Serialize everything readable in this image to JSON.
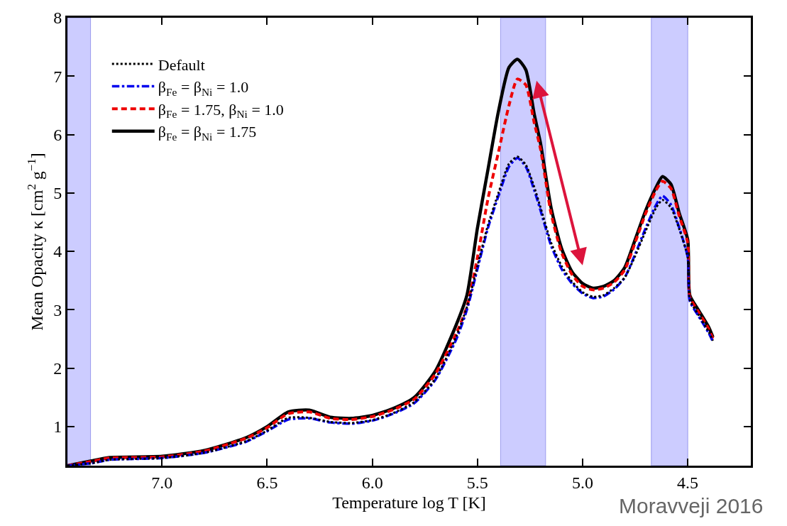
{
  "chart_data": {
    "type": "line",
    "xlabel": "Temperature log T [K]",
    "ylabel": "Mean Opacity κ [cm$^{2}$ g$^{−1}$]",
    "x": [
      7.45,
      7.34,
      7.25,
      7.0,
      6.8,
      6.6,
      6.5,
      6.4,
      6.3,
      6.2,
      6.1,
      6.0,
      5.9,
      5.8,
      5.7,
      5.6,
      5.55,
      5.5,
      5.45,
      5.4,
      5.35,
      5.31,
      5.27,
      5.23,
      5.2,
      5.15,
      5.1,
      5.05,
      5.0,
      4.95,
      4.9,
      4.85,
      4.8,
      4.75,
      4.7,
      4.65,
      4.62,
      4.58,
      4.54,
      4.5,
      4.49,
      4.45,
      4.4,
      4.38
    ],
    "series": [
      {
        "name": "Default",
        "color": "#000000",
        "line_style": "dotted",
        "values": [
          0.33,
          0.37,
          0.43,
          0.46,
          0.55,
          0.75,
          0.93,
          1.15,
          1.15,
          1.08,
          1.06,
          1.11,
          1.23,
          1.42,
          1.82,
          2.55,
          3.05,
          3.75,
          4.45,
          5.0,
          5.5,
          5.62,
          5.48,
          5.1,
          4.75,
          4.15,
          3.75,
          3.48,
          3.3,
          3.22,
          3.25,
          3.37,
          3.55,
          3.92,
          4.35,
          4.75,
          4.88,
          4.75,
          4.38,
          3.9,
          3.17,
          2.92,
          2.62,
          2.47
        ]
      },
      {
        "name": "β$_{Fe}$ = β$_{Ni}$ = 1.0",
        "color": "#0000ee",
        "line_style": "dashdot",
        "values": [
          0.33,
          0.37,
          0.43,
          0.46,
          0.55,
          0.74,
          0.92,
          1.12,
          1.14,
          1.07,
          1.05,
          1.1,
          1.22,
          1.4,
          1.8,
          2.5,
          3.0,
          3.7,
          4.4,
          4.95,
          5.45,
          5.6,
          5.45,
          5.05,
          4.7,
          4.1,
          3.7,
          3.45,
          3.28,
          3.2,
          3.23,
          3.35,
          3.55,
          3.95,
          4.4,
          4.8,
          4.95,
          4.8,
          4.4,
          3.9,
          3.15,
          2.9,
          2.6,
          2.45
        ]
      },
      {
        "name": "β$_{Fe}$ = 1.75, β$_{Ni}$ = 1.0",
        "color": "#ee0000",
        "line_style": "dashed",
        "values": [
          0.33,
          0.4,
          0.46,
          0.48,
          0.58,
          0.8,
          0.98,
          1.22,
          1.25,
          1.14,
          1.12,
          1.17,
          1.29,
          1.47,
          1.9,
          2.6,
          3.05,
          3.9,
          4.9,
          5.7,
          6.5,
          6.95,
          6.85,
          6.2,
          5.75,
          4.65,
          3.98,
          3.6,
          3.4,
          3.34,
          3.37,
          3.47,
          3.68,
          4.15,
          4.65,
          5.05,
          5.2,
          5.08,
          4.6,
          4.15,
          3.22,
          2.97,
          2.67,
          2.5
        ]
      },
      {
        "name": "β$_{Fe}$ = β$_{Ni}$ = 1.75",
        "color": "#000000",
        "line_style": "solid",
        "values": [
          0.33,
          0.41,
          0.47,
          0.49,
          0.59,
          0.81,
          1.0,
          1.25,
          1.28,
          1.16,
          1.14,
          1.19,
          1.31,
          1.5,
          1.95,
          2.75,
          3.25,
          4.4,
          5.4,
          6.4,
          7.15,
          7.29,
          7.11,
          6.35,
          5.85,
          4.75,
          4.05,
          3.65,
          3.45,
          3.37,
          3.4,
          3.5,
          3.72,
          4.2,
          4.7,
          5.1,
          5.28,
          5.15,
          4.65,
          4.2,
          3.25,
          3.0,
          2.7,
          2.53
        ]
      }
    ],
    "bands": [
      {
        "axis": "x",
        "from": 7.45,
        "to": 7.34,
        "color": "#ccccff"
      },
      {
        "axis": "x",
        "from": 5.39,
        "to": 5.176,
        "color": "#ccccff"
      },
      {
        "axis": "x",
        "from": 4.673,
        "to": 4.5,
        "color": "#ccccff"
      }
    ],
    "xlim": [
      7.45,
      4.2
    ],
    "xticks": [
      {
        "value": 7.0,
        "label": "7.0"
      },
      {
        "value": 6.5,
        "label": "6.5"
      },
      {
        "value": 6.0,
        "label": "6.0"
      },
      {
        "value": 5.5,
        "label": "5.5"
      },
      {
        "value": 5.0,
        "label": "5.0"
      },
      {
        "value": 4.5,
        "label": "4.5"
      }
    ],
    "ylim": [
      0.33,
      8
    ],
    "yticks": [
      1,
      2,
      3,
      4,
      5,
      6,
      7,
      8
    ],
    "grid": false,
    "legend": "top left",
    "annotations": [
      "Moravveji 2016"
    ]
  }
}
